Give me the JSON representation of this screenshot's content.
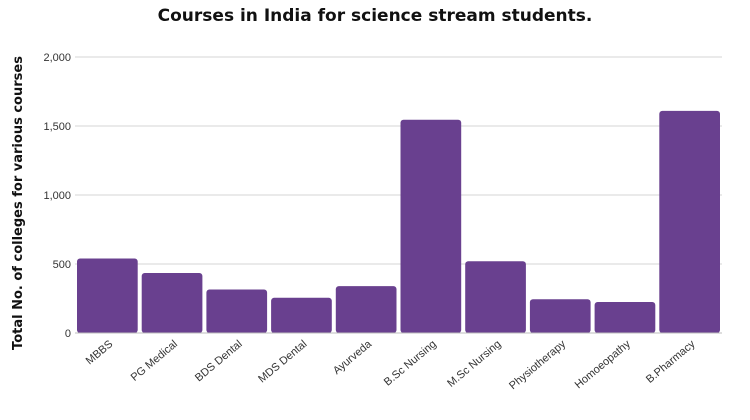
{
  "chart_data": {
    "type": "bar",
    "title": "Courses in India for science stream students.",
    "xlabel": "",
    "ylabel": "Total No. of colleges for various courses",
    "categories": [
      "MBBS",
      "PG Medical",
      "BDS Dental",
      "MDS Dental",
      "Ayurveda",
      "B.Sc Nursing",
      "M.Sc Nursing",
      "Physiotherapy",
      "Homoeopathy",
      "B.Pharmacy"
    ],
    "values": [
      540,
      435,
      315,
      255,
      340,
      1545,
      520,
      245,
      225,
      1610
    ],
    "ylim": [
      0,
      2000
    ],
    "yticks": [
      0,
      500,
      1000,
      1500,
      2000
    ],
    "ytick_labels": [
      "0",
      "500",
      "1,000",
      "1,500",
      "2,000"
    ],
    "grid": true,
    "legend": "none",
    "bar_color": "#69408f"
  }
}
